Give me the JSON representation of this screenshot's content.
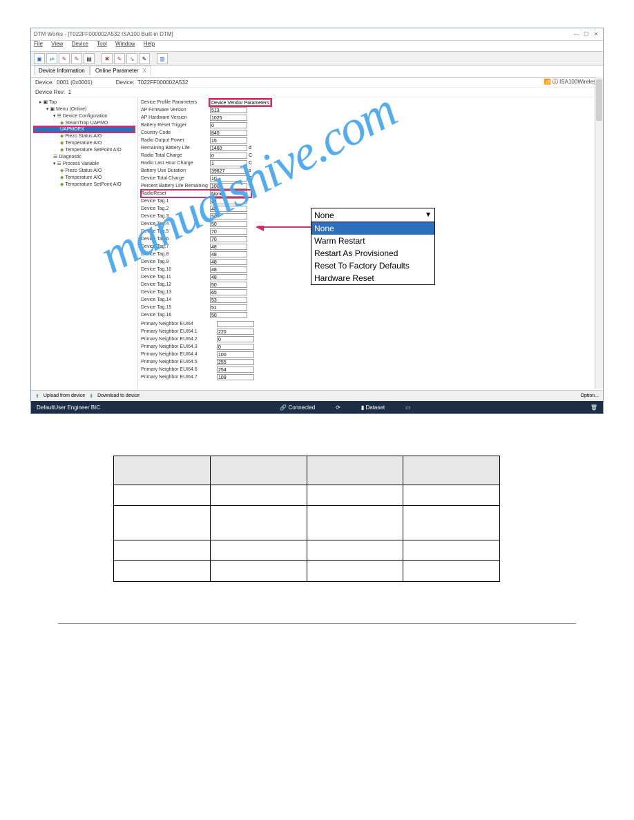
{
  "window": {
    "title": "DTM Works - [T022FF000002A532 ISA100 Built-in DTM]",
    "controls": {
      "min": "—",
      "max": "☐",
      "close": "✕"
    }
  },
  "menu": {
    "items": [
      "File",
      "View",
      "Device",
      "Tool",
      "Window",
      "Help"
    ]
  },
  "tabs": {
    "t1": "Device Information",
    "t2": "Online Parameter",
    "close": "X"
  },
  "info": {
    "device_lbl": "Device:",
    "device_val": "0001 (0x0001)",
    "device2_lbl": "Device:",
    "device2_val": "T022FF000002A532",
    "rev_lbl": "Device Rev:",
    "rev_val": "1",
    "logo_text": "ISA100Wireless"
  },
  "tree": {
    "top": "Top",
    "menu": "Menu (Online)",
    "cfg": "Device Configuration",
    "st": "SteamTrap UAPMO",
    "uap": "UAPMOEX",
    "pi": "Piezo Status AIO",
    "temp": "Temperature AIO",
    "tsp": "Temperature SetPoint AIO",
    "diag": "Diagnostic",
    "pv": "Process Variable",
    "pi2": "Piezo Status AIO",
    "temp2": "Temperature AIO",
    "tsp2": "Temperature SetPoint AIO"
  },
  "params": {
    "dpp": {
      "lbl": "Device Profile Parameters",
      "val": "Device Vendor Parameters"
    },
    "apfw": {
      "lbl": "AP Firmware Version",
      "val": "513"
    },
    "aphw": {
      "lbl": "AP Hardware Version",
      "val": "1025"
    },
    "brt": {
      "lbl": "Battery Reset Trigger",
      "val": "0"
    },
    "cc": {
      "lbl": "Country Code",
      "val": "840"
    },
    "rop": {
      "lbl": "Radio Output Power",
      "val": "15"
    },
    "rbl": {
      "lbl": "Remaining Battery Life",
      "val": "1460",
      "unit": "d"
    },
    "rtc": {
      "lbl": "Radio Total Charge",
      "val": "0",
      "unit": "C"
    },
    "rlhc": {
      "lbl": "Radio Last Hour Charge",
      "val": "1",
      "unit": "C"
    },
    "bud": {
      "lbl": "Battery Use Duration",
      "val": "39627",
      "unit": "s"
    },
    "dtc": {
      "lbl": "Device Total Charge",
      "val": "10",
      "unit": "C"
    },
    "pblr": {
      "lbl": "Percent Battery Life Remaining",
      "val": "100",
      "unit": "%"
    },
    "rr": {
      "lbl": "RadioReset",
      "val": "None"
    },
    "tags": [
      {
        "lbl": "Device Tag.1",
        "val": "84"
      },
      {
        "lbl": "Device Tag.2",
        "val": "48"
      },
      {
        "lbl": "Device Tag.3",
        "val": "50"
      },
      {
        "lbl": "Device Tag.4",
        "val": "50"
      },
      {
        "lbl": "Device Tag.5",
        "val": "70"
      },
      {
        "lbl": "Device Tag.6",
        "val": "70"
      },
      {
        "lbl": "Device Tag.7",
        "val": "48"
      },
      {
        "lbl": "Device Tag.8",
        "val": "48"
      },
      {
        "lbl": "Device Tag.9",
        "val": "48"
      },
      {
        "lbl": "Device Tag.10",
        "val": "48"
      },
      {
        "lbl": "Device Tag.11",
        "val": "48"
      },
      {
        "lbl": "Device Tag.12",
        "val": "50"
      },
      {
        "lbl": "Device Tag.13",
        "val": "65"
      },
      {
        "lbl": "Device Tag.14",
        "val": "53"
      },
      {
        "lbl": "Device Tag.15",
        "val": "51"
      },
      {
        "lbl": "Device Tag.16",
        "val": "50"
      }
    ],
    "neigh": [
      {
        "lbl": "Primary Neighbor EUI64",
        "val": ""
      },
      {
        "lbl": "Primary Neighbor EUI64.1",
        "val": "220"
      },
      {
        "lbl": "Primary Neighbor EUI64.2",
        "val": "0"
      },
      {
        "lbl": "Primary Neighbor EUI64.3",
        "val": "0"
      },
      {
        "lbl": "Primary Neighbor EUI64.4",
        "val": "100"
      },
      {
        "lbl": "Primary Neighbor EUI64.5",
        "val": "255"
      },
      {
        "lbl": "Primary Neighbor EUI64.6",
        "val": "254"
      },
      {
        "lbl": "Primary Neighbor EUI64.7",
        "val": "109"
      }
    ]
  },
  "dropdown": {
    "selected": "None",
    "opts": [
      "None",
      "Warm Restart",
      "Restart As Provisioned",
      "Reset To Factory Defaults",
      "Hardware Reset"
    ]
  },
  "bottombar": {
    "upload": "Upload from device",
    "download": "Download to device",
    "option": "Option..."
  },
  "status": {
    "user": "DefaultUser  Engineer  BIC",
    "connected": "Connected",
    "dataset": "Dataset"
  },
  "watermark": "manualshive.com",
  "lowtable": {
    "rows": 4,
    "cols": 4
  }
}
